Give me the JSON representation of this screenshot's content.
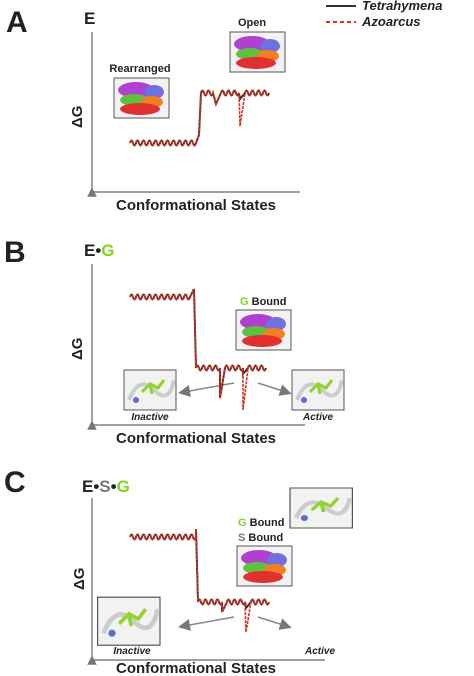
{
  "legend": [
    {
      "label": "Tetrahymena"
    },
    {
      "label": "Azoarcus"
    }
  ],
  "panels": [
    {
      "letter": "A",
      "state": [
        "E"
      ],
      "y_axis": "ΔG",
      "x_axis": "Conformational States",
      "structures": [
        "Rearranged",
        "Open"
      ]
    },
    {
      "letter": "B",
      "state": [
        "E",
        "•",
        "G"
      ],
      "y_axis": "ΔG",
      "x_axis": "Conformational States",
      "bound": [
        {
          "ligand": "G",
          "word": "Bound"
        }
      ],
      "sites": [
        "Inactive",
        "Active"
      ]
    },
    {
      "letter": "C",
      "state": [
        "E",
        "•",
        "S",
        "•",
        "G"
      ],
      "y_axis": "ΔG",
      "x_axis": "Conformational States",
      "bound": [
        {
          "ligand": "G",
          "word": "Bound"
        },
        {
          "ligand": "S",
          "word": "Bound"
        }
      ],
      "sites": [
        "Inactive",
        "Active"
      ]
    }
  ]
}
